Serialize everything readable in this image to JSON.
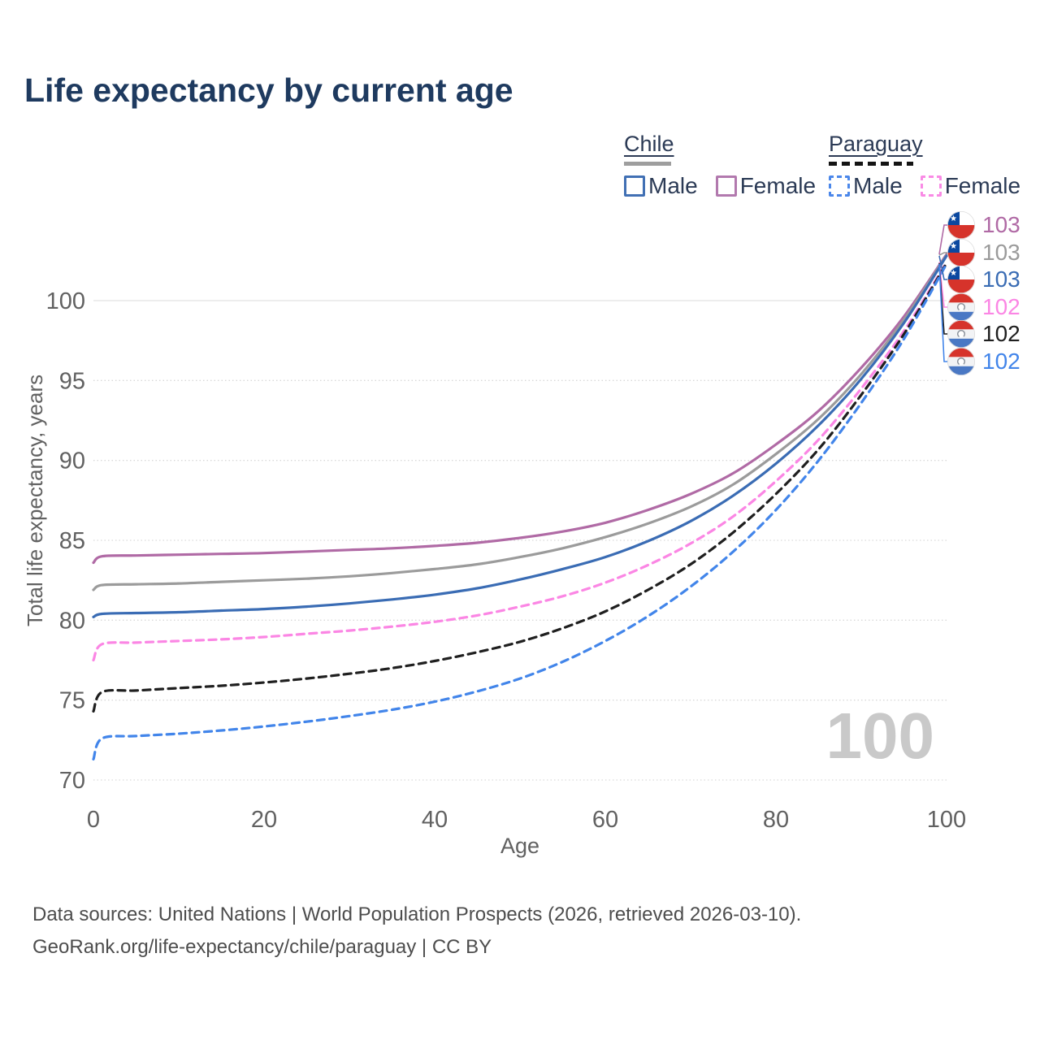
{
  "title": "Life expectancy by current age",
  "legend": {
    "groups": [
      {
        "label": "Chile",
        "line_style": "solid",
        "underline_color": "#9e9e9e",
        "items": [
          {
            "label": "Male",
            "color": "#4170b4"
          },
          {
            "label": "Female",
            "color": "#b279ae"
          }
        ]
      },
      {
        "label": "Paraguay",
        "line_style": "dashed",
        "underline_color": "#141414",
        "items": [
          {
            "label": "Male",
            "color": "#4b87ea"
          },
          {
            "label": "Female",
            "color": "#f98ae5"
          }
        ]
      }
    ]
  },
  "chart_data": {
    "type": "line",
    "title": "Life expectancy by current age",
    "xlabel": "Age",
    "ylabel": "Total life expectancy, years",
    "xlim": [
      0,
      100
    ],
    "ylim": [
      70,
      103
    ],
    "xticks": [
      0,
      20,
      40,
      60,
      80,
      100
    ],
    "yticks": [
      70,
      75,
      80,
      85,
      90,
      95,
      100
    ],
    "grid": "horizontal-dotted",
    "legend_position": "top-right",
    "age_indicator": "100",
    "x": [
      0,
      1,
      5,
      10,
      15,
      20,
      25,
      30,
      35,
      40,
      45,
      50,
      55,
      60,
      65,
      70,
      75,
      80,
      85,
      90,
      95,
      100
    ],
    "series": [
      {
        "name": "Chile Female",
        "country": "Chile",
        "sex": "Female",
        "color": "#b06aa5",
        "dash": "solid",
        "values": [
          83.6,
          84.0,
          84.05,
          84.1,
          84.15,
          84.2,
          84.3,
          84.4,
          84.5,
          84.65,
          84.85,
          85.15,
          85.55,
          86.1,
          86.9,
          87.9,
          89.2,
          91.0,
          93.1,
          95.8,
          99.0,
          102.9
        ]
      },
      {
        "name": "Chile Both sexes",
        "country": "Chile",
        "sex": "Both",
        "color": "#9b9b9b",
        "dash": "solid",
        "values": [
          81.9,
          82.2,
          82.25,
          82.3,
          82.4,
          82.5,
          82.6,
          82.75,
          82.95,
          83.2,
          83.5,
          83.95,
          84.5,
          85.2,
          86.05,
          87.1,
          88.5,
          90.4,
          92.6,
          95.4,
          98.8,
          102.85
        ]
      },
      {
        "name": "Chile Male",
        "country": "Chile",
        "sex": "Male",
        "color": "#3a6cb4",
        "dash": "solid",
        "values": [
          80.2,
          80.4,
          80.45,
          80.5,
          80.6,
          80.7,
          80.85,
          81.05,
          81.3,
          81.6,
          82.0,
          82.55,
          83.2,
          83.95,
          84.95,
          86.2,
          87.8,
          89.8,
          92.2,
          95.1,
          98.6,
          102.8
        ]
      },
      {
        "name": "Paraguay Female",
        "country": "Paraguay",
        "sex": "Female",
        "color": "#fb86e4",
        "dash": "dashed",
        "values": [
          77.5,
          78.5,
          78.6,
          78.7,
          78.8,
          78.95,
          79.15,
          79.35,
          79.6,
          79.9,
          80.3,
          80.85,
          81.5,
          82.35,
          83.45,
          84.8,
          86.5,
          88.7,
          91.3,
          94.5,
          98.1,
          102.4
        ]
      },
      {
        "name": "Paraguay Both sexes",
        "country": "Paraguay",
        "sex": "Both",
        "color": "#1f1f1f",
        "dash": "dashed",
        "values": [
          74.3,
          75.5,
          75.6,
          75.75,
          75.9,
          76.1,
          76.35,
          76.65,
          77.0,
          77.45,
          78.0,
          78.65,
          79.5,
          80.55,
          81.9,
          83.5,
          85.5,
          87.9,
          90.7,
          94.1,
          97.9,
          102.35
        ]
      },
      {
        "name": "Paraguay Male",
        "country": "Paraguay",
        "sex": "Male",
        "color": "#4285ea",
        "dash": "dashed",
        "values": [
          71.3,
          72.6,
          72.75,
          72.9,
          73.1,
          73.35,
          73.65,
          74.0,
          74.4,
          74.9,
          75.55,
          76.35,
          77.4,
          78.7,
          80.25,
          82.1,
          84.3,
          86.9,
          90.0,
          93.6,
          97.6,
          102.3
        ]
      }
    ]
  },
  "end_labels": [
    {
      "value": "103",
      "color": "#b06aa5",
      "flag": "chile"
    },
    {
      "value": "103",
      "color": "#9b9b9b",
      "flag": "chile"
    },
    {
      "value": "103",
      "color": "#3a6cb4",
      "flag": "chile"
    },
    {
      "value": "102",
      "color": "#fb86e4",
      "flag": "paraguay"
    },
    {
      "value": "102",
      "color": "#1f1f1f",
      "flag": "paraguay"
    },
    {
      "value": "102",
      "color": "#4285ea",
      "flag": "paraguay"
    }
  ],
  "footer": {
    "line1": "Data sources: United Nations | World Population Prospects (2026, retrieved 2026-03-10).",
    "line2": "GeoRank.org/life-expectancy/chile/paraguay | CC BY"
  }
}
